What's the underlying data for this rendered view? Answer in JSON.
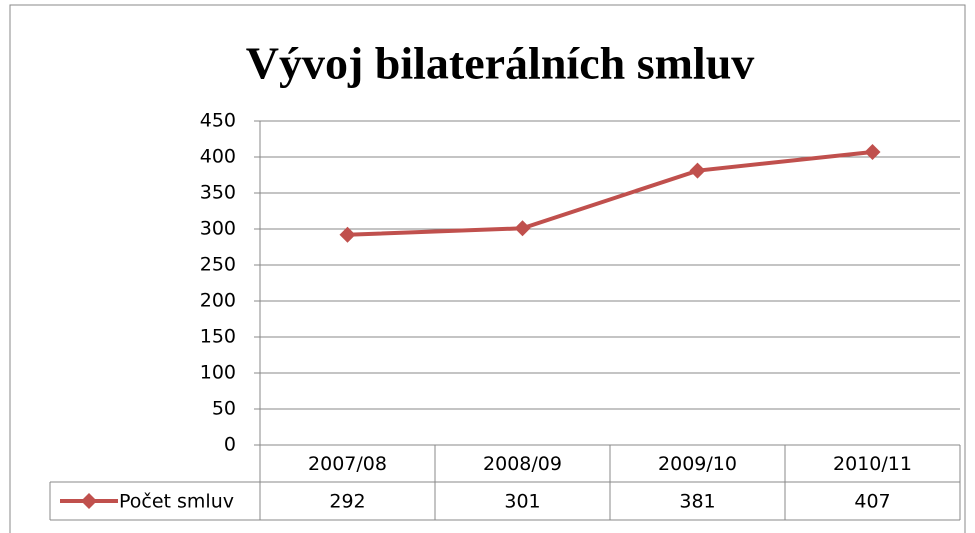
{
  "chart_data": {
    "type": "line",
    "title": "Vývoj bilaterálních smluv",
    "categories": [
      "2007/08",
      "2008/09",
      "2009/10",
      "2010/11"
    ],
    "series": [
      {
        "name": "Počet smluv",
        "color": "#c0504d",
        "values": [
          292,
          301,
          381,
          407
        ]
      }
    ],
    "ylim": [
      0,
      450
    ],
    "yticks": [
      0,
      50,
      100,
      150,
      200,
      250,
      300,
      350,
      400,
      450
    ],
    "grid": true,
    "data_table": true
  }
}
